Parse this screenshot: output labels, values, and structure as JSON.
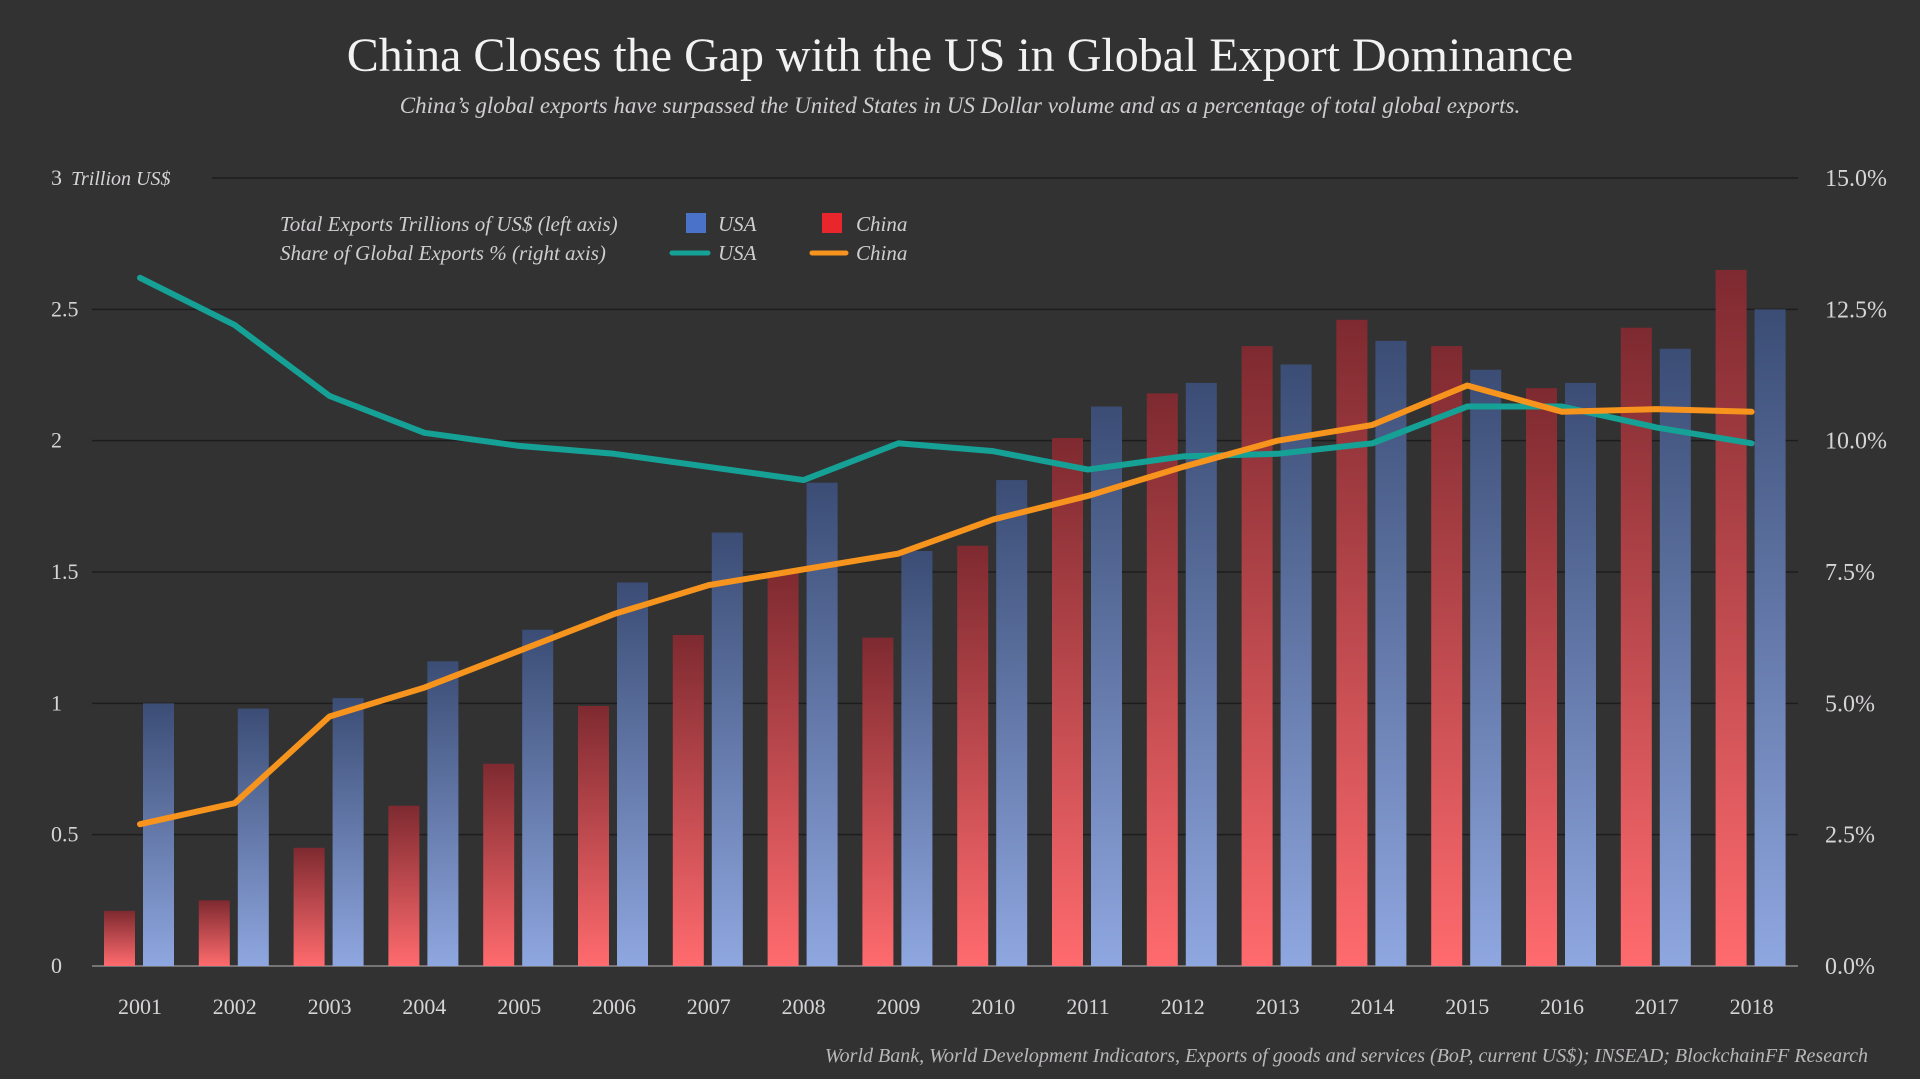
{
  "title": "China Closes the Gap with the US in Global Export Dominance",
  "subtitle": "China’s global exports have surpassed the United States in US Dollar volume and as a percentage of total global exports.",
  "source": "World Bank, World Development Indicators, Exports of goods and services (BoP, current US$); INSEAD; BlockchainFF Research",
  "colors": {
    "background": "#333233",
    "usa_bar_top": "#3b4d75",
    "usa_bar_bottom": "#8fa7e0",
    "china_bar_top": "#7e2a30",
    "china_bar_bottom": "#ff6b6e",
    "usa_line": "#16a196",
    "china_line": "#f7941d",
    "usa_legend_swatch": "#4a72c8",
    "china_legend_swatch": "#e8262b",
    "grid": "#1e1d1e"
  },
  "legend": {
    "row1_label": "Total Exports Trillions of US$ (left axis)",
    "row2_label": "Share of Global Exports % (right axis)",
    "usa": "USA",
    "china": "China"
  },
  "chart_data": {
    "type": "bar",
    "categories": [
      "2001",
      "2002",
      "2003",
      "2004",
      "2005",
      "2006",
      "2007",
      "2008",
      "2009",
      "2010",
      "2011",
      "2012",
      "2013",
      "2014",
      "2015",
      "2016",
      "2017",
      "2018"
    ],
    "left_axis": {
      "unit_label": "Trillion US$",
      "ylim": [
        0,
        3
      ],
      "ticks": [
        0,
        0.5,
        1,
        1.5,
        2,
        2.5,
        3
      ],
      "tick_labels": [
        "0",
        "0.5",
        "1",
        "1.5",
        "2",
        "2.5",
        "3"
      ]
    },
    "right_axis": {
      "ylim": [
        0,
        15
      ],
      "ticks": [
        0,
        2.5,
        5,
        7.5,
        10,
        12.5,
        15
      ],
      "tick_labels": [
        "0.0%",
        "2.5%",
        "5.0%",
        "7.5%",
        "10.0%",
        "12.5%",
        "15.0%"
      ]
    },
    "grid": true,
    "legend_position": "top-left",
    "series": [
      {
        "name": "China",
        "kind": "bar",
        "axis": "left",
        "values": [
          0.21,
          0.25,
          0.45,
          0.61,
          0.77,
          0.99,
          1.26,
          1.5,
          1.25,
          1.6,
          2.01,
          2.18,
          2.36,
          2.46,
          2.36,
          2.2,
          2.43,
          2.65
        ]
      },
      {
        "name": "USA",
        "kind": "bar",
        "axis": "left",
        "values": [
          1.0,
          0.98,
          1.02,
          1.16,
          1.28,
          1.46,
          1.65,
          1.84,
          1.58,
          1.85,
          2.13,
          2.22,
          2.29,
          2.38,
          2.27,
          2.22,
          2.35,
          2.5
        ]
      },
      {
        "name": "USA",
        "kind": "line",
        "axis": "right",
        "values": [
          13.1,
          12.2,
          10.85,
          10.15,
          9.9,
          9.75,
          9.5,
          9.25,
          9.95,
          9.8,
          9.45,
          9.7,
          9.75,
          9.95,
          10.65,
          10.65,
          10.25,
          9.95
        ]
      },
      {
        "name": "China",
        "kind": "line",
        "axis": "right",
        "values": [
          2.7,
          3.1,
          4.75,
          5.3,
          6.0,
          6.7,
          7.25,
          7.55,
          7.85,
          8.5,
          8.95,
          9.5,
          10.0,
          10.3,
          11.05,
          10.55,
          10.6,
          10.55
        ]
      }
    ]
  }
}
